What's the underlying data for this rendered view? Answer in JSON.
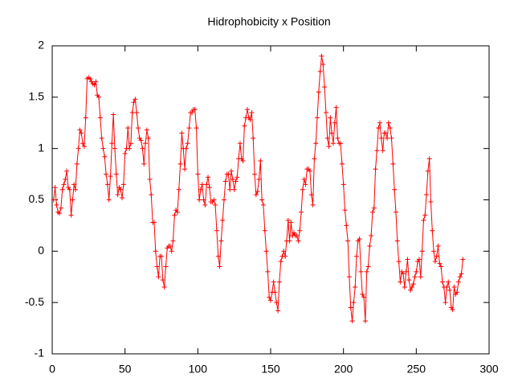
{
  "chart_data": {
    "type": "line",
    "title": "Hidrophobicity x Position",
    "x": [
      1,
      2,
      3,
      4,
      5,
      6,
      7,
      8,
      9,
      10,
      11,
      12,
      13,
      14,
      15,
      16,
      17,
      18,
      19,
      20,
      21,
      22,
      23,
      24,
      25,
      26,
      27,
      28,
      29,
      30,
      31,
      32,
      33,
      34,
      35,
      36,
      37,
      38,
      39,
      40,
      41,
      42,
      43,
      44,
      45,
      46,
      47,
      48,
      49,
      50,
      51,
      52,
      53,
      54,
      55,
      56,
      57,
      58,
      59,
      60,
      61,
      62,
      63,
      64,
      65,
      66,
      67,
      68,
      69,
      70,
      71,
      72,
      73,
      74,
      75,
      76,
      77,
      78,
      79,
      80,
      81,
      82,
      83,
      84,
      85,
      86,
      87,
      88,
      89,
      90,
      91,
      92,
      93,
      94,
      95,
      96,
      97,
      98,
      99,
      100,
      101,
      102,
      103,
      104,
      105,
      106,
      107,
      108,
      109,
      110,
      111,
      112,
      113,
      114,
      115,
      116,
      117,
      118,
      119,
      120,
      121,
      122,
      123,
      124,
      125,
      126,
      127,
      128,
      129,
      130,
      131,
      132,
      133,
      134,
      135,
      136,
      137,
      138,
      139,
      140,
      141,
      142,
      143,
      144,
      145,
      146,
      147,
      148,
      149,
      150,
      151,
      152,
      153,
      154,
      155,
      156,
      157,
      158,
      159,
      160,
      161,
      162,
      163,
      164,
      165,
      166,
      167,
      168,
      169,
      170,
      171,
      172,
      173,
      174,
      175,
      176,
      177,
      178,
      179,
      180,
      181,
      182,
      183,
      184,
      185,
      186,
      187,
      188,
      189,
      190,
      191,
      192,
      193,
      194,
      195,
      196,
      197,
      198,
      199,
      200,
      201,
      202,
      203,
      204,
      205,
      206,
      207,
      208,
      209,
      210,
      211,
      212,
      213,
      214,
      215,
      216,
      217,
      218,
      219,
      220,
      221,
      222,
      223,
      224,
      225,
      226,
      227,
      228,
      229,
      230,
      231,
      232,
      233,
      234,
      235,
      236,
      237,
      238,
      239,
      240,
      241,
      242,
      243,
      244,
      245,
      246,
      247,
      248,
      249,
      250,
      251,
      252,
      253,
      254,
      255,
      256,
      257,
      258,
      259,
      260,
      261,
      262,
      263,
      264,
      265,
      266,
      267,
      268,
      269,
      270,
      271,
      272,
      273,
      274,
      275,
      276,
      277,
      278,
      279,
      280,
      281,
      282
    ],
    "series": [
      {
        "color": "#ff0000",
        "values": [
          0.5,
          0.62,
          0.45,
          0.38,
          0.37,
          0.42,
          0.6,
          0.65,
          0.7,
          0.78,
          0.62,
          0.6,
          0.35,
          0.5,
          0.65,
          0.6,
          0.85,
          1.0,
          1.18,
          1.15,
          1.05,
          1.02,
          1.3,
          1.68,
          1.69,
          1.68,
          1.65,
          1.63,
          1.62,
          1.65,
          1.52,
          1.5,
          1.3,
          1.1,
          1.0,
          0.92,
          0.75,
          0.65,
          0.5,
          0.73,
          1.05,
          1.33,
          1.0,
          0.75,
          0.55,
          0.62,
          0.6,
          0.52,
          0.65,
          0.95,
          1.0,
          1.2,
          1.0,
          1.05,
          1.35,
          1.45,
          1.48,
          1.35,
          1.2,
          1.1,
          1.08,
          1.0,
          0.85,
          1.05,
          1.18,
          1.1,
          0.7,
          0.55,
          0.28,
          0.28,
          0.0,
          -0.15,
          -0.25,
          -0.05,
          -0.05,
          -0.28,
          -0.35,
          -0.15,
          0.03,
          0.05,
          0.05,
          0.0,
          0.1,
          0.35,
          0.4,
          0.38,
          0.6,
          0.85,
          1.15,
          1.0,
          0.8,
          1.0,
          1.05,
          1.2,
          1.35,
          1.35,
          1.38,
          1.38,
          1.2,
          0.75,
          0.5,
          0.6,
          0.65,
          0.5,
          0.45,
          0.65,
          0.72,
          0.62,
          0.48,
          0.48,
          0.5,
          0.45,
          0.2,
          -0.05,
          -0.15,
          0.1,
          0.3,
          0.5,
          0.68,
          0.75,
          0.75,
          0.6,
          0.78,
          0.7,
          0.6,
          0.68,
          0.72,
          0.9,
          1.05,
          0.9,
          0.88,
          1.22,
          1.3,
          1.38,
          1.3,
          1.28,
          1.35,
          1.1,
          0.75,
          0.55,
          0.58,
          0.7,
          0.88,
          0.5,
          0.45,
          0.2,
          0.0,
          -0.2,
          -0.45,
          -0.48,
          -0.4,
          -0.3,
          -0.4,
          -0.5,
          -0.58,
          -0.3,
          -0.1,
          -0.05,
          0.0,
          -0.05,
          0.1,
          0.3,
          0.1,
          0.28,
          0.15,
          0.18,
          0.15,
          0.15,
          0.1,
          0.2,
          0.38,
          0.6,
          0.7,
          0.65,
          0.8,
          0.8,
          0.78,
          0.55,
          0.45,
          0.9,
          1.05,
          1.3,
          1.55,
          1.75,
          1.9,
          1.82,
          1.6,
          1.35,
          1.1,
          1.02,
          1.3,
          1.15,
          1.05,
          1.25,
          1.4,
          1.1,
          1.05,
          1.05,
          0.85,
          0.65,
          0.4,
          0.25,
          0.1,
          -0.25,
          -0.55,
          -0.68,
          -0.5,
          -0.35,
          -0.05,
          0.1,
          0.12,
          -0.2,
          -0.42,
          -0.45,
          -0.68,
          -0.2,
          -0.15,
          0.05,
          0.15,
          0.38,
          0.42,
          0.8,
          0.98,
          1.2,
          1.25,
          1.1,
          0.98,
          1.15,
          1.15,
          1.1,
          1.25,
          1.2,
          1.1,
          0.85,
          0.6,
          0.38,
          0.1,
          -0.1,
          -0.3,
          -0.2,
          -0.22,
          -0.35,
          -0.2,
          -0.08,
          -0.28,
          -0.38,
          -0.35,
          -0.32,
          -0.25,
          -0.2,
          -0.1,
          -0.08,
          -0.25,
          0.0,
          0.3,
          0.35,
          0.55,
          0.78,
          0.9,
          0.48,
          0.2,
          0.0,
          -0.1,
          -0.05,
          0.05,
          -0.12,
          -0.15,
          -0.3,
          -0.35,
          -0.5,
          -0.35,
          -0.3,
          -0.38,
          -0.55,
          -0.57,
          -0.35,
          -0.42,
          -0.4,
          -0.3,
          -0.25,
          -0.22,
          -0.08
        ]
      }
    ],
    "xlim": [
      0,
      300
    ],
    "xticks": [
      0,
      50,
      100,
      150,
      200,
      250,
      300
    ],
    "ylim": [
      -1,
      2
    ],
    "yticks": [
      -1,
      -0.5,
      0,
      0.5,
      1,
      1.5,
      2
    ]
  }
}
